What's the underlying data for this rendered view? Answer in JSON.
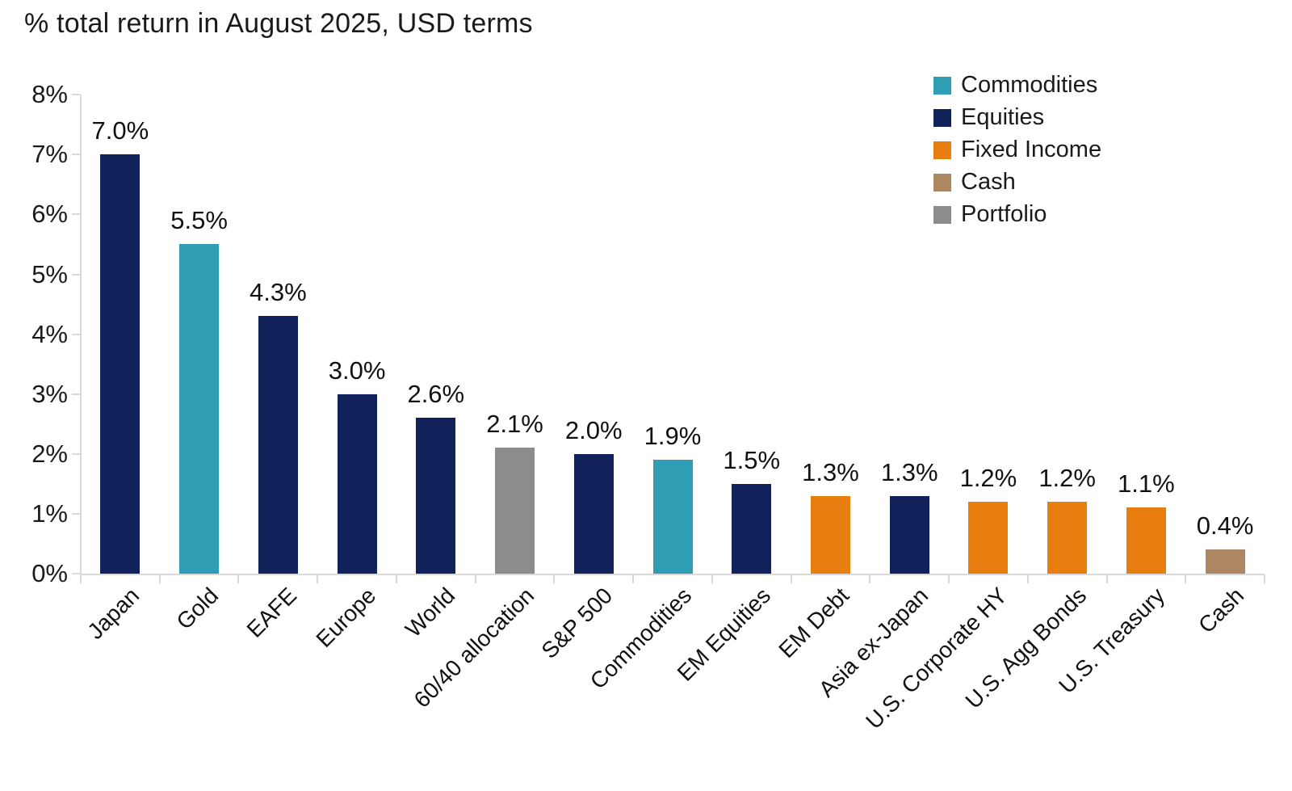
{
  "title": "% total return in August 2025, USD terms",
  "colors": {
    "equities": "#102259",
    "commodities": "#2f9eb5",
    "fixed_income": "#e87e0f",
    "cash": "#ad8762",
    "portfolio": "#8c8c8c",
    "axis": "#d9d9d9",
    "text": "#1a1a1a"
  },
  "chart_data": {
    "type": "bar",
    "title": "% total return in August 2025, USD terms",
    "xlabel": "",
    "ylabel": "",
    "ylim": [
      0,
      8
    ],
    "grid": false,
    "legend_position": "top-right",
    "ytick_labels": [
      "0%",
      "1%",
      "2%",
      "3%",
      "4%",
      "5%",
      "6%",
      "7%",
      "8%"
    ],
    "categories": [
      "Japan",
      "Gold",
      "EAFE",
      "Europe",
      "World",
      "60/40 allocation",
      "S&P 500",
      "Commodities",
      "EM Equities",
      "EM Debt",
      "Asia ex-Japan",
      "U.S. Corporate HY",
      "U.S. Agg Bonds",
      "U.S. Treasury",
      "Cash"
    ],
    "values": [
      7.0,
      5.5,
      4.3,
      3.0,
      2.6,
      2.1,
      2.0,
      1.9,
      1.5,
      1.3,
      1.3,
      1.2,
      1.2,
      1.1,
      0.4
    ],
    "bar_labels": [
      "7.0%",
      "5.5%",
      "4.3%",
      "3.0%",
      "2.6%",
      "2.1%",
      "2.0%",
      "1.9%",
      "1.5%",
      "1.3%",
      "1.3%",
      "1.2%",
      "1.2%",
      "1.1%",
      "0.4%"
    ],
    "bar_groups": [
      "equities",
      "commodities",
      "equities",
      "equities",
      "equities",
      "portfolio",
      "equities",
      "commodities",
      "equities",
      "fixed_income",
      "equities",
      "fixed_income",
      "fixed_income",
      "fixed_income",
      "cash"
    ],
    "legend": [
      {
        "label": "Commodities",
        "color_key": "commodities"
      },
      {
        "label": "Equities",
        "color_key": "equities"
      },
      {
        "label": "Fixed Income",
        "color_key": "fixed_income"
      },
      {
        "label": "Cash",
        "color_key": "cash"
      },
      {
        "label": "Portfolio",
        "color_key": "portfolio"
      }
    ]
  }
}
